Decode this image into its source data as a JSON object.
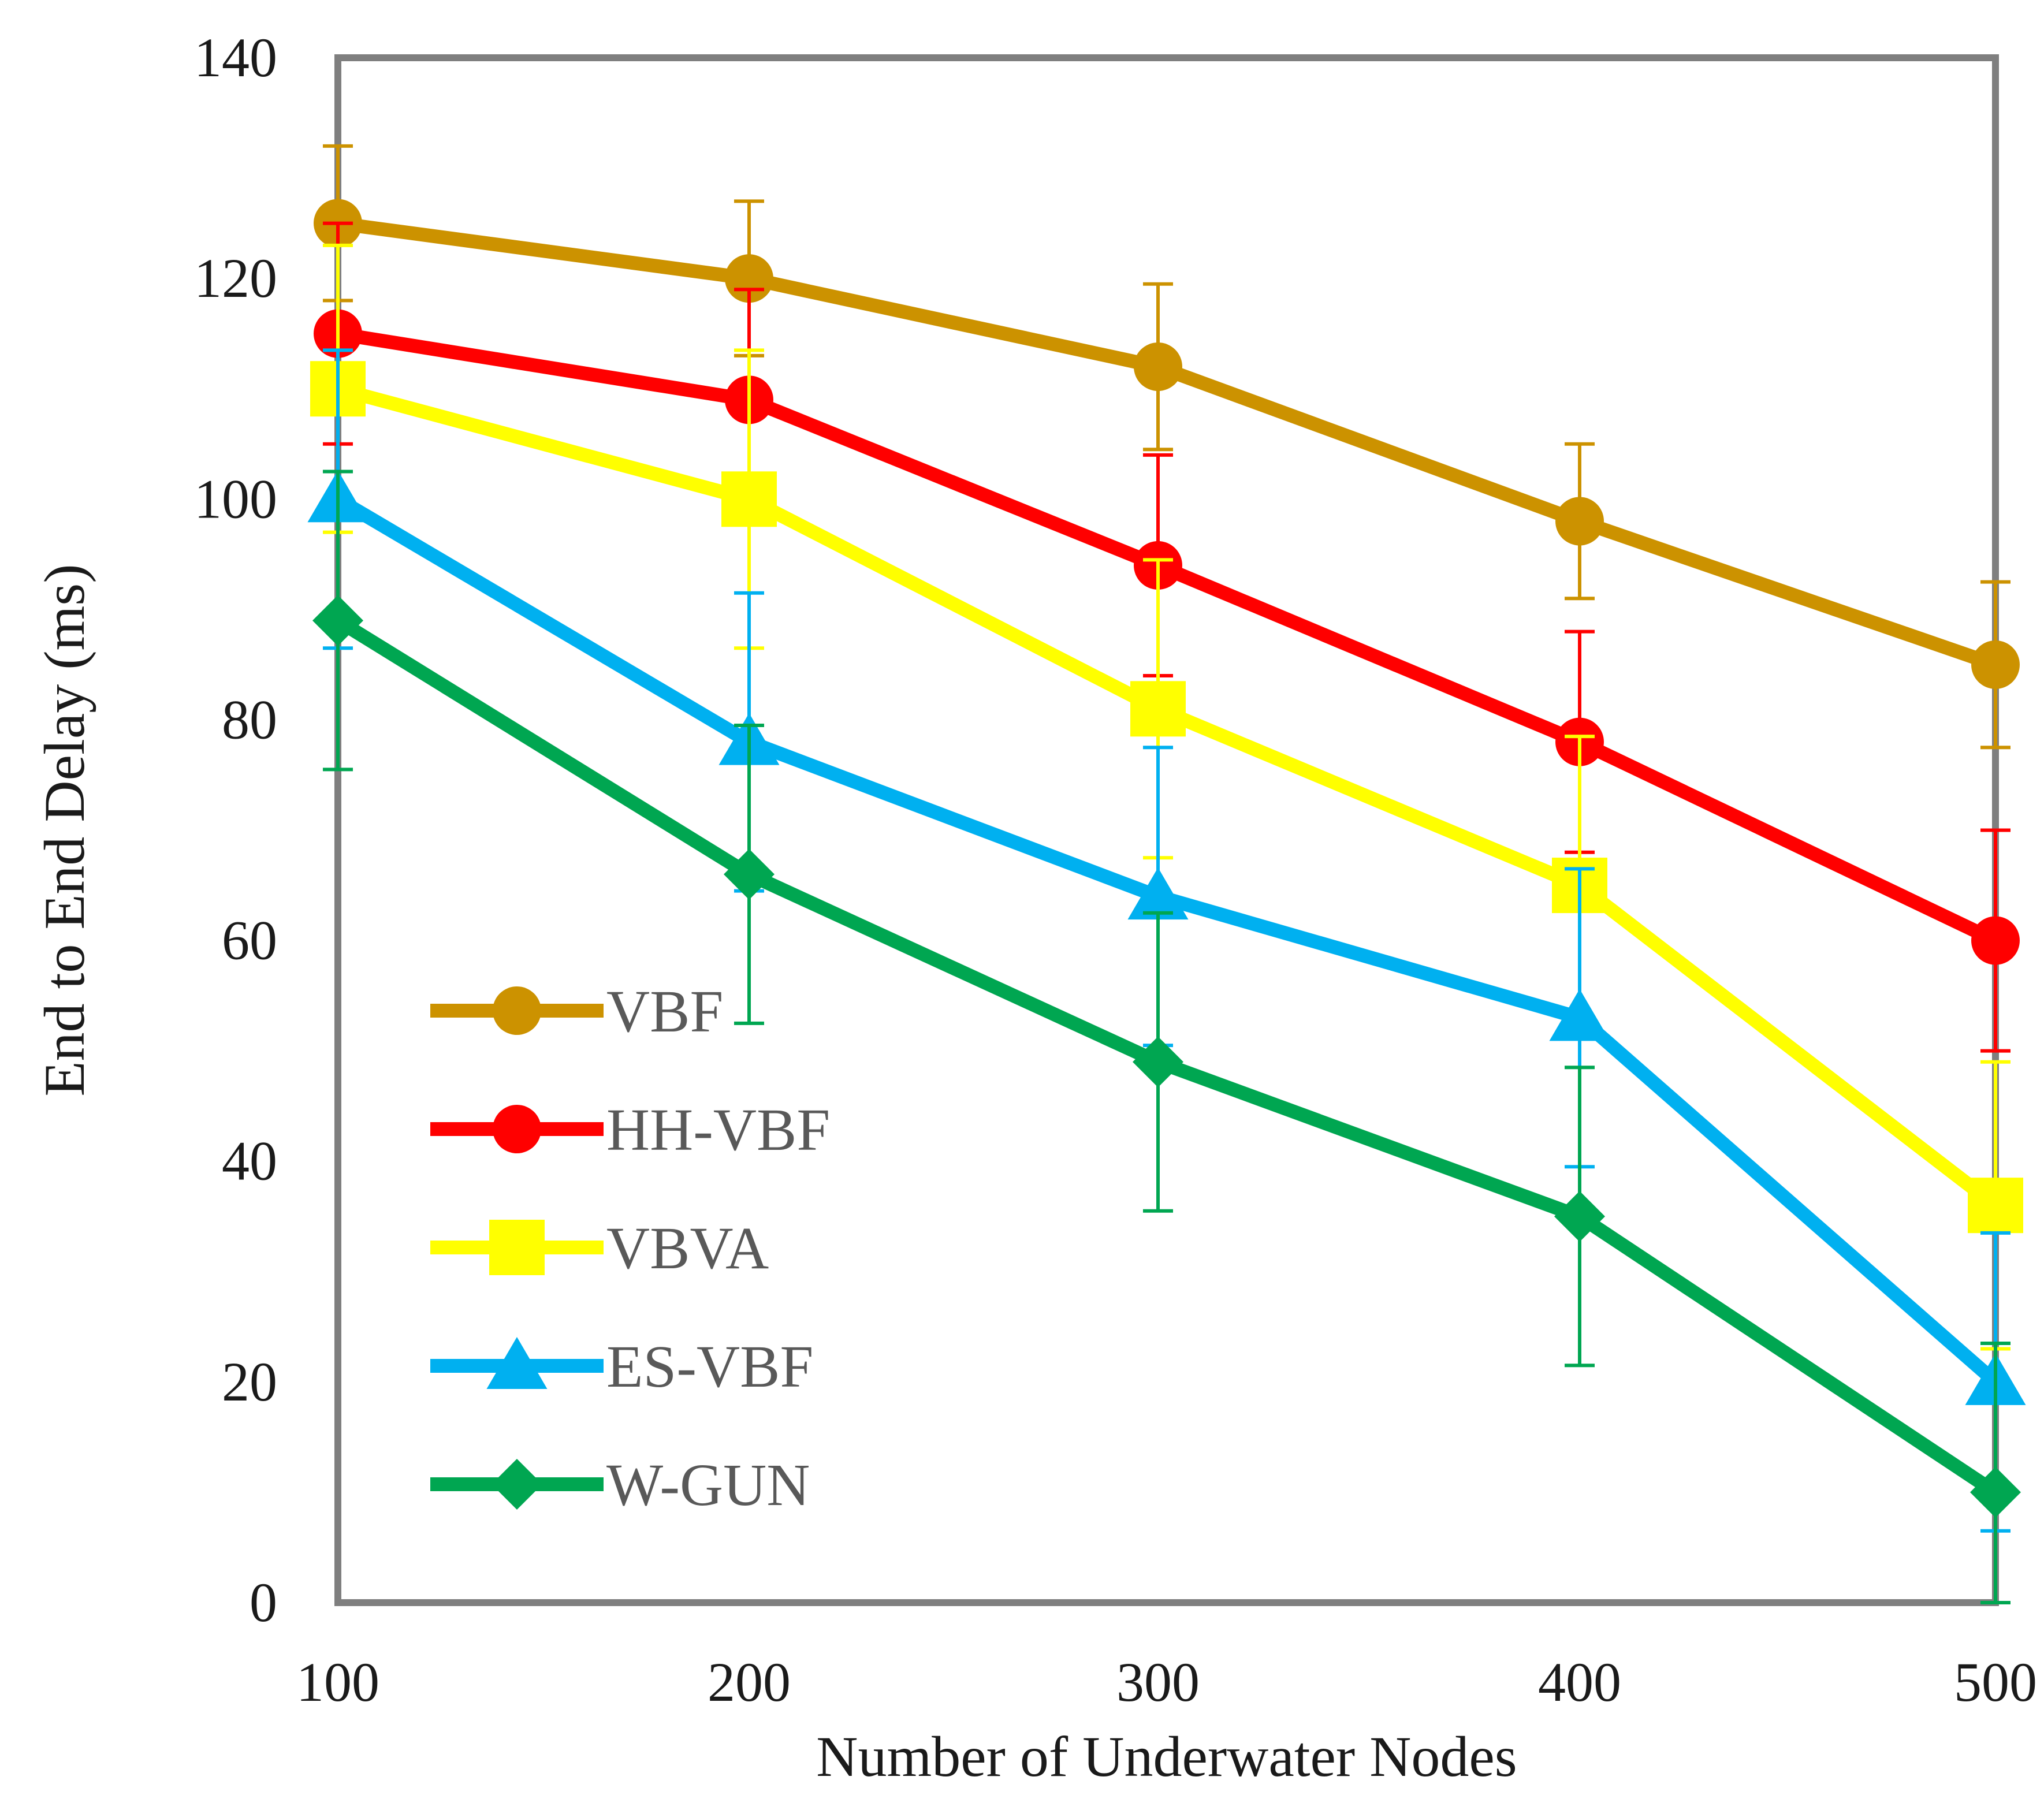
{
  "chart_data": {
    "type": "line",
    "title": "",
    "xlabel": "Number of Underwater Nodes",
    "ylabel": "End to End Delay (ms)",
    "x": [
      100,
      200,
      300,
      400,
      500
    ],
    "x_tick_labels": [
      "100",
      "200",
      "300",
      "400",
      "500"
    ],
    "y_tick_labels": [
      "0",
      "20",
      "40",
      "60",
      "80",
      "100",
      "120",
      "140"
    ],
    "ylim": [
      0,
      140
    ],
    "grid": false,
    "legend_position": "bottom-left",
    "series": [
      {
        "name": "VBF",
        "color": "#cc9200",
        "marker": "circle",
        "values": [
          125,
          120,
          112,
          98,
          85
        ],
        "errors": [
          7,
          7,
          7.5,
          7,
          7.5
        ]
      },
      {
        "name": "HH-VBF",
        "color": "#ff0000",
        "marker": "circle",
        "values": [
          115,
          109,
          94,
          78,
          60
        ],
        "errors": [
          10,
          10,
          10,
          10,
          10
        ]
      },
      {
        "name": "VBVA",
        "color": "#ffff00",
        "marker": "square",
        "values": [
          110,
          100,
          81,
          65,
          36
        ],
        "errors": [
          13,
          13.5,
          13.5,
          13.5,
          13
        ]
      },
      {
        "name": "ES-VBF",
        "color": "#00b0f0",
        "marker": "triangle",
        "values": [
          100,
          78,
          64,
          53,
          20
        ],
        "errors": [
          13.5,
          13.5,
          13.5,
          13.5,
          13.5
        ]
      },
      {
        "name": "W-GUN",
        "color": "#00a651",
        "marker": "diamond",
        "values": [
          89,
          66,
          49,
          35,
          10
        ],
        "errors": [
          13.5,
          13.5,
          13.5,
          13.5,
          13.5
        ]
      }
    ]
  }
}
